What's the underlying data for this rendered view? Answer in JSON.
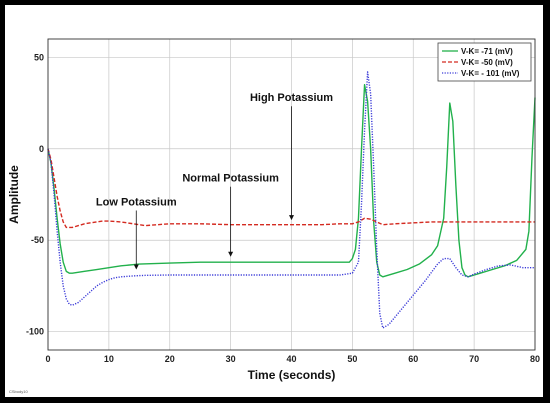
{
  "chart_data": {
    "type": "line",
    "title": "",
    "xlabel": "Time (seconds)",
    "ylabel": "Amplitude",
    "xlim": [
      0,
      80
    ],
    "ylim": [
      -110,
      60
    ],
    "xticks": [
      0,
      10,
      20,
      30,
      40,
      50,
      60,
      70,
      80
    ],
    "yticks": [
      50,
      0,
      -50,
      -100
    ],
    "xtick_labels": [
      "0",
      "10",
      "20",
      "30",
      "40",
      "50",
      "60",
      "70",
      "80"
    ],
    "ytick_labels": [
      "50",
      "0",
      "-50",
      "-100"
    ],
    "grid": true,
    "legend_position": "top-right",
    "credit": "CSbody10",
    "series": [
      {
        "name": "V-K= -71 (mV)",
        "color": "#22b14c",
        "dash": "solid",
        "points": [
          [
            0,
            0
          ],
          [
            0.5,
            -8
          ],
          [
            1,
            -22
          ],
          [
            1.5,
            -38
          ],
          [
            2,
            -52
          ],
          [
            2.5,
            -62
          ],
          [
            3,
            -67
          ],
          [
            3.5,
            -68
          ],
          [
            4,
            -68
          ],
          [
            6,
            -67
          ],
          [
            8,
            -66
          ],
          [
            10,
            -65
          ],
          [
            12,
            -64
          ],
          [
            15,
            -63
          ],
          [
            20,
            -62.5
          ],
          [
            25,
            -62
          ],
          [
            30,
            -62
          ],
          [
            40,
            -62
          ],
          [
            48,
            -62
          ],
          [
            49.5,
            -62
          ],
          [
            50,
            -60
          ],
          [
            50.5,
            -55
          ],
          [
            51,
            -38
          ],
          [
            51.5,
            0
          ],
          [
            52,
            35
          ],
          [
            52.5,
            26
          ],
          [
            53,
            0
          ],
          [
            53.5,
            -40
          ],
          [
            54,
            -62
          ],
          [
            54.5,
            -69
          ],
          [
            55,
            -70
          ],
          [
            57,
            -68
          ],
          [
            59,
            -66
          ],
          [
            61,
            -63
          ],
          [
            63,
            -58
          ],
          [
            64,
            -53
          ],
          [
            65,
            -38
          ],
          [
            65.5,
            -10
          ],
          [
            66,
            25
          ],
          [
            66.5,
            15
          ],
          [
            67,
            -20
          ],
          [
            67.5,
            -50
          ],
          [
            68,
            -65
          ],
          [
            68.5,
            -69
          ],
          [
            69,
            -70
          ],
          [
            71,
            -68
          ],
          [
            73,
            -66
          ],
          [
            75,
            -64
          ],
          [
            77,
            -61
          ],
          [
            78.5,
            -55
          ],
          [
            79,
            -45
          ],
          [
            79.5,
            -5
          ],
          [
            80,
            28
          ]
        ]
      },
      {
        "name": "V-K= -50 (mV)",
        "color": "#d42a20",
        "dash": "dashed",
        "points": [
          [
            0,
            0
          ],
          [
            0.5,
            -6
          ],
          [
            1,
            -16
          ],
          [
            1.5,
            -26
          ],
          [
            2,
            -34
          ],
          [
            2.5,
            -40
          ],
          [
            3,
            -43
          ],
          [
            4,
            -43
          ],
          [
            5,
            -42
          ],
          [
            6,
            -41
          ],
          [
            7,
            -40.5
          ],
          [
            8,
            -40
          ],
          [
            9,
            -39.5
          ],
          [
            10,
            -39.5
          ],
          [
            12,
            -40
          ],
          [
            14,
            -41
          ],
          [
            16,
            -42
          ],
          [
            18,
            -41.5
          ],
          [
            20,
            -41
          ],
          [
            25,
            -41
          ],
          [
            30,
            -41.5
          ],
          [
            35,
            -41.5
          ],
          [
            40,
            -41.5
          ],
          [
            45,
            -41.5
          ],
          [
            48,
            -41
          ],
          [
            50,
            -41
          ],
          [
            51,
            -40
          ],
          [
            52,
            -38
          ],
          [
            53,
            -38.5
          ],
          [
            54,
            -40
          ],
          [
            55,
            -41.5
          ],
          [
            57,
            -41
          ],
          [
            60,
            -40.5
          ],
          [
            63,
            -40
          ],
          [
            66,
            -40
          ],
          [
            70,
            -40
          ],
          [
            75,
            -40
          ],
          [
            80,
            -40
          ]
        ]
      },
      {
        "name": "V-K= - 101 (mV)",
        "color": "#3a3ad8",
        "dash": "dotted",
        "points": [
          [
            0,
            0
          ],
          [
            0.5,
            -8
          ],
          [
            1,
            -25
          ],
          [
            1.5,
            -45
          ],
          [
            2,
            -62
          ],
          [
            2.5,
            -75
          ],
          [
            3,
            -82
          ],
          [
            3.5,
            -85
          ],
          [
            4,
            -85.5
          ],
          [
            5,
            -84
          ],
          [
            6,
            -81
          ],
          [
            7,
            -78
          ],
          [
            8,
            -75
          ],
          [
            9,
            -73
          ],
          [
            10,
            -71.5
          ],
          [
            11,
            -70.5
          ],
          [
            12,
            -70
          ],
          [
            14,
            -69.5
          ],
          [
            16,
            -69.2
          ],
          [
            20,
            -69
          ],
          [
            30,
            -69
          ],
          [
            40,
            -69
          ],
          [
            48,
            -69
          ],
          [
            50,
            -68
          ],
          [
            51,
            -62
          ],
          [
            51.5,
            -30
          ],
          [
            52,
            10
          ],
          [
            52.5,
            42
          ],
          [
            53,
            30
          ],
          [
            53.5,
            -10
          ],
          [
            54,
            -55
          ],
          [
            54.5,
            -90
          ],
          [
            55,
            -98
          ],
          [
            56,
            -96
          ],
          [
            58,
            -88
          ],
          [
            60,
            -80
          ],
          [
            62,
            -72
          ],
          [
            64,
            -63
          ],
          [
            65,
            -60
          ],
          [
            66,
            -60
          ],
          [
            67,
            -65
          ],
          [
            68,
            -69
          ],
          [
            69,
            -70
          ],
          [
            70,
            -68.5
          ],
          [
            72,
            -66
          ],
          [
            74,
            -64
          ],
          [
            76,
            -63.5
          ],
          [
            78,
            -65
          ],
          [
            80,
            -65
          ]
        ]
      }
    ],
    "annotations": [
      {
        "text": "High Potassium",
        "x": 40,
        "y": 26,
        "arrow_to": [
          40,
          -39
        ]
      },
      {
        "text": "Normal Potassium",
        "x": 30,
        "y": -18,
        "arrow_to": [
          30,
          -59
        ]
      },
      {
        "text": "Low Potassium",
        "x": 14.5,
        "y": -31,
        "arrow_to": [
          14.5,
          -66
        ]
      }
    ]
  }
}
